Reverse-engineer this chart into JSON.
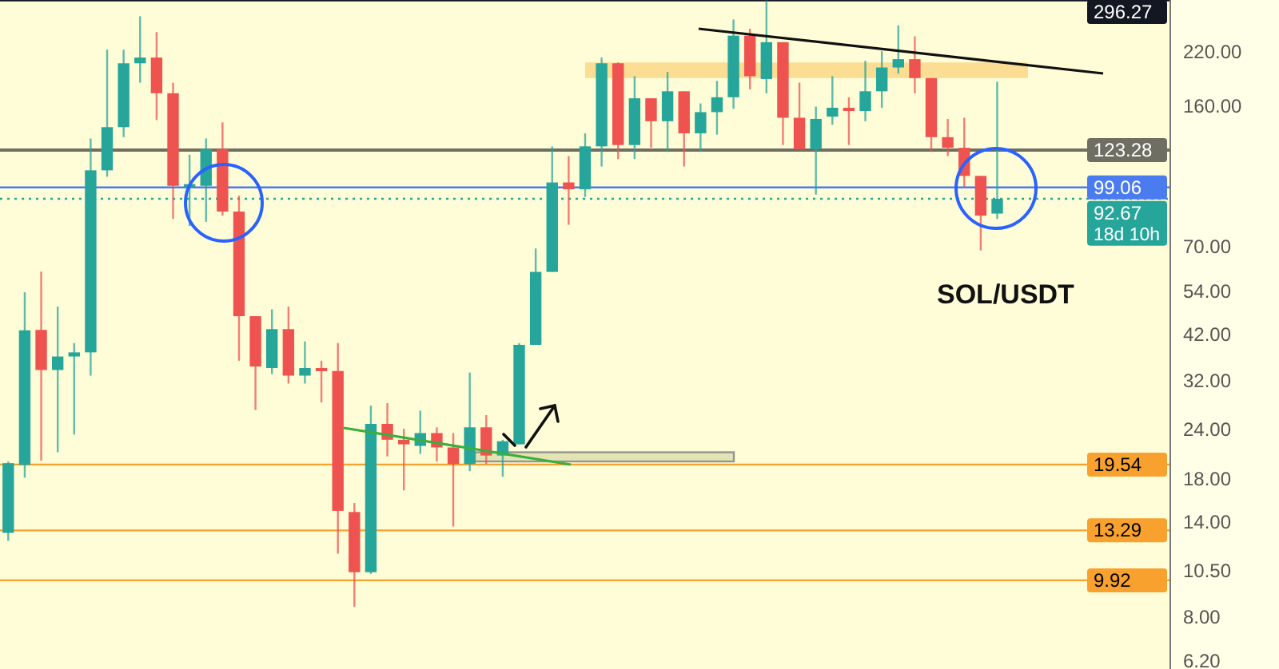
{
  "chart_data": {
    "type": "candlestick",
    "title": "SOL/USDT",
    "annotations": [
      "18d 10h"
    ],
    "categories": [
      null,
      null,
      null,
      null,
      null,
      null,
      null,
      null,
      null,
      null,
      null,
      null,
      null,
      null,
      null,
      null,
      null,
      null,
      null,
      null,
      null,
      null,
      null,
      null,
      null,
      null,
      null,
      null,
      null,
      null,
      null,
      null,
      null,
      null,
      null,
      null,
      null,
      null,
      null,
      null,
      null,
      null,
      null,
      null,
      null,
      null,
      null,
      null,
      null,
      null,
      null,
      null,
      null,
      null,
      null,
      null,
      null,
      null,
      null,
      null,
      null,
      null,
      null,
      null,
      null,
      null,
      null,
      null,
      null,
      null,
      null
    ],
    "ohlc": [
      [
        13.1,
        19.9,
        12.5,
        19.7
      ],
      [
        19.5,
        53.6,
        18.1,
        42.9
      ],
      [
        43.0,
        60.5,
        20.0,
        34.0
      ],
      [
        34.0,
        49.3,
        21.0,
        36.8
      ],
      [
        36.8,
        39.8,
        23.3,
        37.7
      ],
      [
        37.7,
        132,
        32.9,
        109.5
      ],
      [
        109.5,
        222,
        105.5,
        141
      ],
      [
        141,
        222,
        133,
        205
      ],
      [
        205,
        270,
        183,
        212
      ],
      [
        212,
        246,
        147,
        172
      ],
      [
        172,
        183,
        82.4,
        100
      ],
      [
        99,
        120,
        79,
        101
      ],
      [
        100,
        132,
        81,
        124
      ],
      [
        124,
        145,
        84,
        86
      ],
      [
        86,
        94.5,
        35.9,
        46.6
      ],
      [
        46.6,
        46.6,
        26.9,
        34.7
      ],
      [
        34.4,
        48.5,
        33.2,
        43.2
      ],
      [
        43.2,
        49.3,
        31.4,
        32.9
      ],
      [
        32.9,
        40.2,
        31.4,
        34.4
      ],
      [
        34.4,
        35.9,
        28.1,
        33.8
      ],
      [
        33.8,
        39.8,
        11.6,
        14.9
      ],
      [
        14.8,
        15.6,
        8.5,
        10.4
      ],
      [
        10.4,
        27.6,
        10.3,
        24.8
      ],
      [
        24.8,
        28.0,
        20.5,
        22.6
      ],
      [
        22.6,
        24.1,
        16.8,
        22.0
      ],
      [
        21.8,
        26.8,
        20.8,
        23.5
      ],
      [
        23.5,
        24.3,
        19.9,
        21.6
      ],
      [
        21.6,
        23.5,
        13.6,
        19.6
      ],
      [
        19.6,
        33.5,
        18.8,
        24.3
      ],
      [
        24.3,
        26.1,
        19.6,
        20.6
      ],
      [
        20.6,
        22.6,
        18.2,
        22.4
      ],
      [
        22.0,
        39.8,
        22.0,
        39.4
      ],
      [
        39.4,
        69.3,
        39.4,
        60.4
      ],
      [
        60.4,
        126,
        60.4,
        102
      ],
      [
        102,
        119,
        79.6,
        98
      ],
      [
        98,
        136,
        93.7,
        126
      ],
      [
        126,
        212,
        112,
        205
      ],
      [
        205,
        206,
        117,
        127
      ],
      [
        127,
        190,
        117,
        167
      ],
      [
        167,
        167,
        125,
        146
      ],
      [
        146,
        195,
        122,
        174
      ],
      [
        174,
        174,
        112,
        136
      ],
      [
        136,
        162,
        122,
        154
      ],
      [
        154,
        185,
        135,
        168
      ],
      [
        168,
        265,
        157,
        241
      ],
      [
        241,
        251,
        176,
        190
      ],
      [
        187,
        296,
        172,
        232
      ],
      [
        232,
        232,
        127,
        149
      ],
      [
        149,
        183,
        124,
        124
      ],
      [
        124,
        159,
        95,
        148
      ],
      [
        150,
        190,
        143,
        158
      ],
      [
        158,
        168,
        127,
        155
      ],
      [
        155,
        208,
        146,
        174
      ],
      [
        174,
        220,
        158,
        200
      ],
      [
        200,
        256,
        193,
        210
      ],
      [
        210,
        240,
        172,
        188
      ],
      [
        188,
        188,
        122,
        133
      ],
      [
        133,
        148,
        119,
        125
      ],
      [
        125,
        149,
        99,
        106
      ],
      [
        106,
        106,
        68.5,
        84
      ],
      [
        85,
        184,
        82.4,
        92.67
      ],
      null,
      null,
      null,
      null,
      null,
      null,
      null,
      null,
      null,
      null
    ],
    "colors": [
      "#26a69a",
      "#26a69a",
      "#ef5350",
      "#26a69a",
      "#26a69a",
      "#26a69a",
      "#26a69a",
      "#26a69a",
      "#26a69a",
      "#ef5350",
      "#ef5350",
      "#26a69a",
      "#26a69a",
      "#ef5350",
      "#ef5350",
      "#ef5350",
      "#26a69a",
      "#ef5350",
      "#26a69a",
      "#ef5350",
      "#ef5350",
      "#ef5350",
      "#26a69a",
      "#ef5350",
      "#ef5350",
      "#26a69a",
      "#ef5350",
      "#ef5350",
      "#26a69a",
      "#ef5350",
      "#26a69a",
      "#26a69a",
      "#26a69a",
      "#26a69a",
      "#ef5350",
      "#26a69a",
      "#26a69a",
      "#ef5350",
      "#26a69a",
      "#ef5350",
      "#26a69a",
      "#ef5350",
      "#26a69a",
      "#26a69a",
      "#26a69a",
      "#ef5350",
      "#26a69a",
      "#ef5350",
      "#ef5350",
      "#26a69a",
      "#26a69a",
      "#ef5350",
      "#26a69a",
      "#26a69a",
      "#26a69a",
      "#ef5350",
      "#ef5350",
      "#ef5350",
      "#ef5350",
      "#ef5350",
      "#26a69a",
      null,
      null,
      null,
      null,
      null,
      null,
      null,
      null,
      null,
      null
    ],
    "log": true,
    "ylim": [
      5.9,
      297
    ],
    "yticks": [
      {
        "value": 220,
        "label": "220.00"
      },
      {
        "value": 160,
        "label": "160.00"
      },
      {
        "value": 70,
        "label": "70.00"
      },
      {
        "value": 54,
        "label": "54.00"
      },
      {
        "value": 42,
        "label": "42.00"
      },
      {
        "value": 32,
        "label": "32.00"
      },
      {
        "value": 24,
        "label": "24.00"
      },
      {
        "value": 18,
        "label": "18.00"
      },
      {
        "value": 14,
        "label": "14.00"
      },
      {
        "value": 10.5,
        "label": "10.50"
      },
      {
        "value": 8,
        "label": "8.00"
      },
      {
        "value": 6.2,
        "label": "6.20"
      }
    ],
    "ref_lines": [
      {
        "axis": "y",
        "value": 296.27,
        "label": "296.27",
        "color": "#131722"
      },
      {
        "axis": "y",
        "value": 123.28,
        "label": "123.28",
        "color": "#6e6e62"
      },
      {
        "axis": "y",
        "value": 99.06,
        "label": "99.06",
        "color": "#4a7cf0"
      },
      {
        "axis": "y",
        "value": 92.67,
        "label": "92.67",
        "color": "#26a69a",
        "line_style": "dotted"
      },
      {
        "axis": "y",
        "value": 19.54,
        "label": "19.54",
        "color": "#f9a12e"
      },
      {
        "axis": "y",
        "value": 13.29,
        "label": "13.29",
        "color": "#f9a12e"
      },
      {
        "axis": "y",
        "value": 9.92,
        "label": "9.92",
        "color": "#f9a12e"
      }
    ],
    "bands": [
      {
        "axis": "y",
        "from": 188,
        "to": 206,
        "color": "#fbd98c"
      },
      {
        "axis": "y",
        "from": 19.9,
        "to": 21.0,
        "color": "#dfe2b0"
      }
    ]
  }
}
